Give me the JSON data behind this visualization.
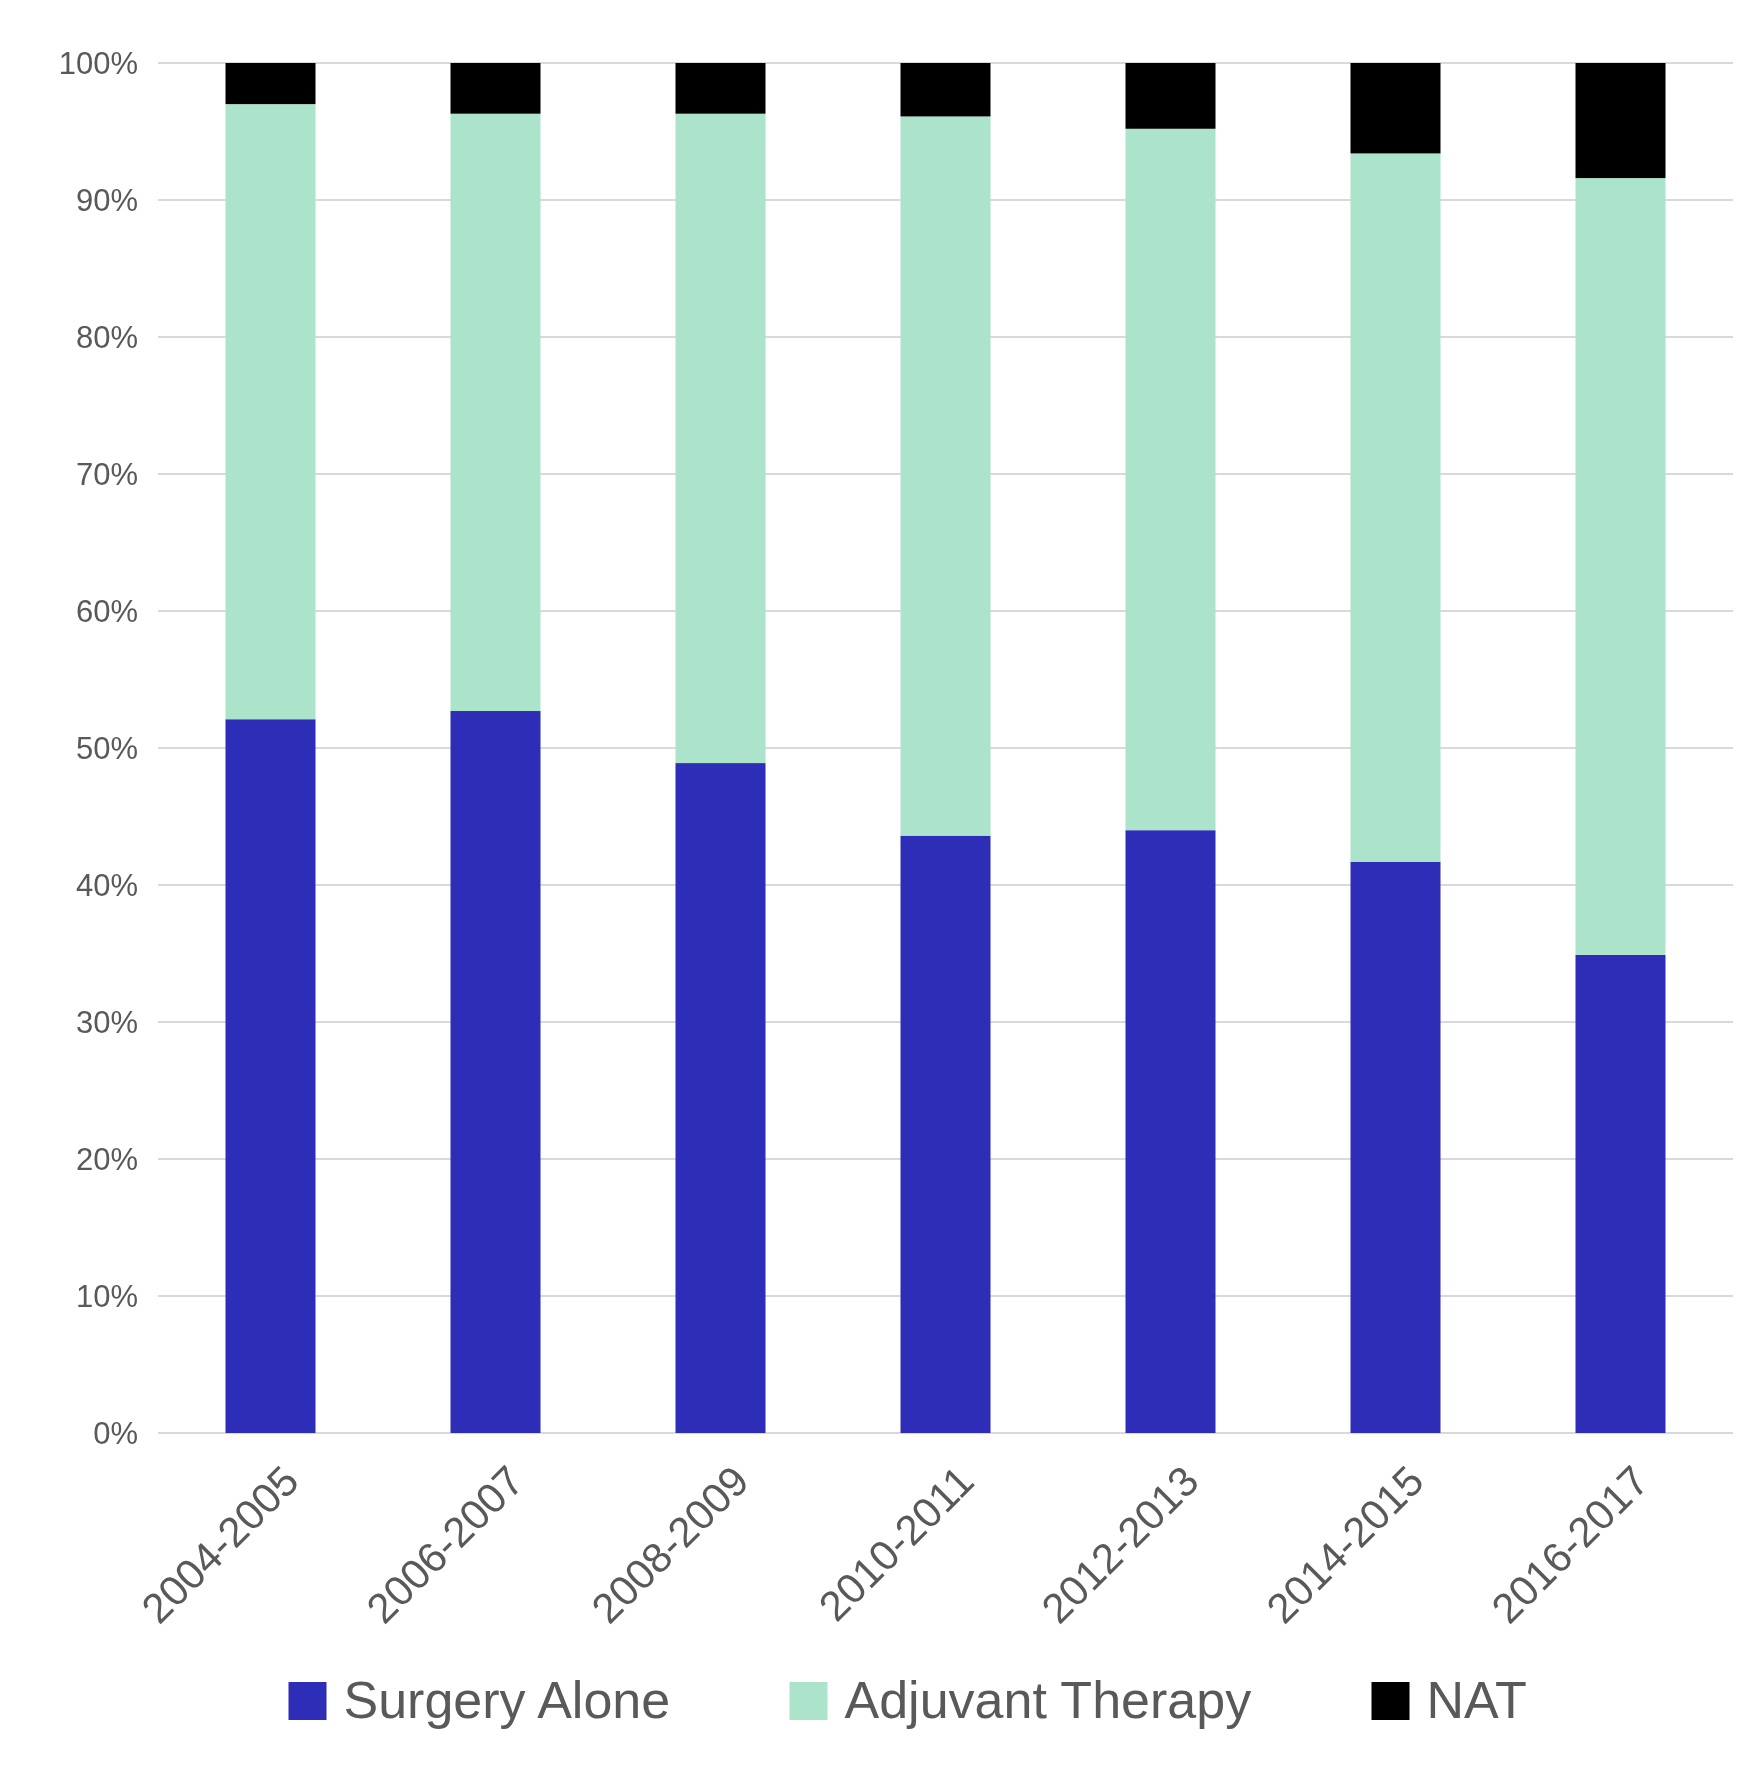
{
  "chart_data": {
    "type": "bar",
    "stacked": true,
    "categories": [
      "2004-2005",
      "2006-2007",
      "2008-2009",
      "2010-2011",
      "2012-2013",
      "2014-2015",
      "2016-2017"
    ],
    "series": [
      {
        "name": "Surgery Alone",
        "color": "#2e2db8",
        "values": [
          52.1,
          52.7,
          48.9,
          43.6,
          44.0,
          41.7,
          34.9
        ]
      },
      {
        "name": "Adjuvant Therapy",
        "color": "#ace3cb",
        "values": [
          44.9,
          43.6,
          47.4,
          52.5,
          51.2,
          51.7,
          56.7
        ]
      },
      {
        "name": "NAT",
        "color": "#000000",
        "values": [
          3.0,
          3.7,
          3.7,
          3.9,
          4.8,
          6.6,
          8.4
        ]
      }
    ],
    "ylim": [
      0,
      100
    ],
    "yticks": [
      {
        "value": 0,
        "label": "0%"
      },
      {
        "value": 10,
        "label": "10%"
      },
      {
        "value": 20,
        "label": "20%"
      },
      {
        "value": 30,
        "label": "30%"
      },
      {
        "value": 40,
        "label": "40%"
      },
      {
        "value": 50,
        "label": "50%"
      },
      {
        "value": 60,
        "label": "60%"
      },
      {
        "value": 70,
        "label": "70%"
      },
      {
        "value": 80,
        "label": "80%"
      },
      {
        "value": 90,
        "label": "90%"
      },
      {
        "value": 100,
        "label": "100%"
      }
    ],
    "grid": "y",
    "legend": "bottom"
  }
}
